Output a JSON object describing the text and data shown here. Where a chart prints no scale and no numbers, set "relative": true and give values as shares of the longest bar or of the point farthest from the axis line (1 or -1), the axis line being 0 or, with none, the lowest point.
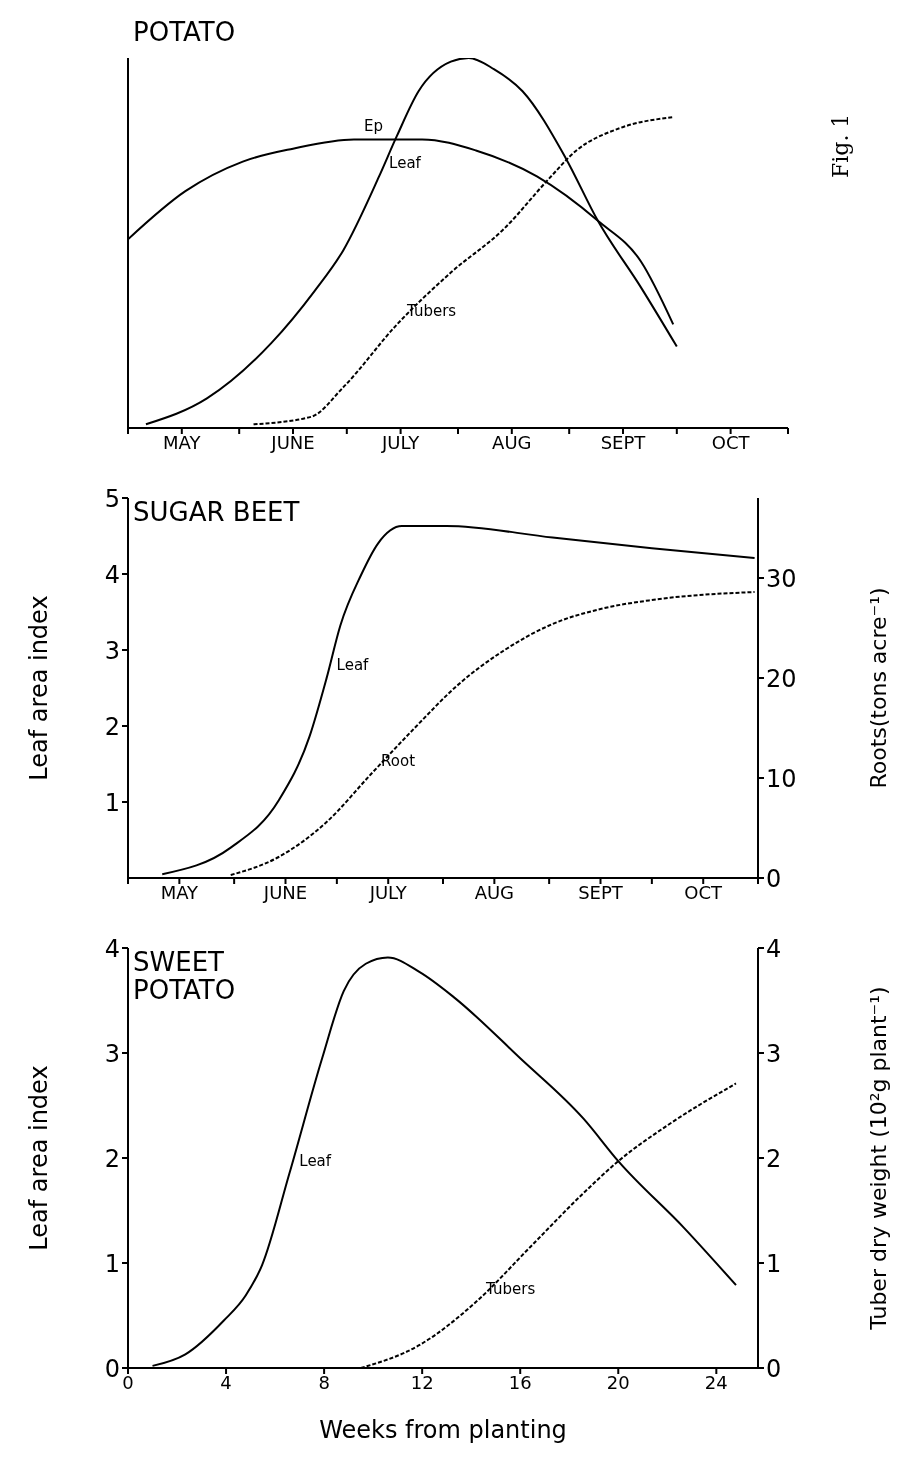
{
  "chart_data": [
    {
      "type": "line",
      "title": "POTATO",
      "relative": true,
      "annotations": [
        "Fig. 1"
      ],
      "xlim": [
        "--05-01",
        "--11-01"
      ],
      "xticks": [
        {
          "value": "--05-01",
          "label": null
        },
        {
          "value": "--05-16",
          "label": "MAY"
        },
        {
          "value": "--06-01",
          "label": null
        },
        {
          "value": "--06-16",
          "label": "JUNE"
        },
        {
          "value": "--07-01",
          "label": null
        },
        {
          "value": "--07-16",
          "label": "JULY"
        },
        {
          "value": "--08-01",
          "label": null
        },
        {
          "value": "--08-16",
          "label": "AUG"
        },
        {
          "value": "--09-01",
          "label": null
        },
        {
          "value": "--09-16",
          "label": "SEPT"
        },
        {
          "value": "--10-01",
          "label": null
        },
        {
          "value": "--10-16",
          "label": "OCT"
        },
        {
          "value": "--11-01",
          "label": null
        }
      ],
      "grid": false,
      "legend": false,
      "series": [
        {
          "name": "Ep",
          "color": "#000000",
          "line_style": "solid",
          "x": [
            "--05-01",
            "--05-17",
            "--06-02",
            "--06-16",
            "--07-03",
            "--07-14",
            "--07-22",
            "--08-06",
            "--08-23",
            "--09-09",
            "--09-21",
            "--09-30"
          ],
          "values": [
            0.51,
            0.64,
            0.72,
            0.755,
            0.78,
            0.78,
            0.78,
            0.75,
            0.68,
            0.56,
            0.45,
            0.28
          ]
        },
        {
          "name": "Leaf",
          "color": "#000000",
          "line_style": "solid",
          "x": [
            "--05-06",
            "--05-23",
            "--06-10",
            "--06-22",
            "--06-30",
            "--07-10",
            "--07-15",
            "--07-21",
            "--07-30",
            "--08-04",
            "--08-11",
            "--08-19",
            "--08-31",
            "--09-09",
            "--09-21",
            "--10-01"
          ],
          "values": [
            0.01,
            0.08,
            0.23,
            0.37,
            0.48,
            0.68,
            0.79,
            0.91,
            0.99,
            1.0,
            0.97,
            0.91,
            0.73,
            0.56,
            0.38,
            0.22
          ]
        },
        {
          "name": "Tubers",
          "color": "#000000",
          "line_style": "dashed",
          "x": [
            "--06-05",
            "--06-21",
            "--06-30",
            "--07-15",
            "--07-30",
            "--08-14",
            "--08-26",
            "--09-03",
            "--09-15",
            "--09-30"
          ],
          "values": [
            0.01,
            0.03,
            0.11,
            0.28,
            0.42,
            0.54,
            0.67,
            0.75,
            0.81,
            0.84
          ]
        }
      ]
    },
    {
      "type": "line",
      "title": "SUGAR BEET",
      "ylabel": "Leaf area index",
      "y2label": "Roots(tons acre⁻¹)",
      "xlim": [
        "--05-01",
        "--11-01"
      ],
      "xticks": [
        {
          "value": "--05-01",
          "label": null
        },
        {
          "value": "--05-16",
          "label": "MAY"
        },
        {
          "value": "--06-01",
          "label": null
        },
        {
          "value": "--06-16",
          "label": "JUNE"
        },
        {
          "value": "--07-01",
          "label": null
        },
        {
          "value": "--07-16",
          "label": "JULY"
        },
        {
          "value": "--08-01",
          "label": null
        },
        {
          "value": "--08-16",
          "label": "AUG"
        },
        {
          "value": "--09-01",
          "label": null
        },
        {
          "value": "--09-16",
          "label": "SEPT"
        },
        {
          "value": "--10-01",
          "label": null
        },
        {
          "value": "--10-16",
          "label": "OCT"
        },
        {
          "value": "--11-01",
          "label": null
        }
      ],
      "ylim": [
        0,
        5
      ],
      "yticks": [
        1,
        2,
        3,
        4,
        5
      ],
      "y2lim": [
        0,
        38
      ],
      "y2ticks": [
        0,
        10,
        20,
        30
      ],
      "grid": false,
      "legend": false,
      "series": [
        {
          "name": "Leaf",
          "color": "#000000",
          "line_style": "solid",
          "x": [
            "--05-11",
            "--05-31",
            "--06-14",
            "--06-23",
            "--06-28",
            "--07-02",
            "--07-08",
            "--07-13",
            "--07-20",
            "--08-02",
            "--09-02",
            "--10-01",
            "--10-31"
          ],
          "values": [
            0.05,
            0.4,
            1.02,
            1.86,
            2.63,
            3.32,
            3.98,
            4.4,
            4.63,
            4.63,
            4.48,
            4.34,
            4.21
          ]
        },
        {
          "name": "Root",
          "color": "#000000",
          "line_style": "dashed",
          "axis": "y2",
          "x": [
            "--05-31",
            "--06-14",
            "--06-28",
            "--07-11",
            "--07-24",
            "--08-05",
            "--08-19",
            "--09-02",
            "--09-16",
            "--10-01",
            "--10-31"
          ],
          "values": [
            0.3,
            2.1,
            5.6,
            10.4,
            15.1,
            19.2,
            22.8,
            25.4,
            26.9,
            27.8,
            28.6
          ]
        }
      ]
    },
    {
      "type": "line",
      "title": "SWEET POTATO",
      "xlabel": "Weeks from planting",
      "ylabel": "Leaf area index",
      "y2label": "Tuber dry weight (10²g plant⁻¹)",
      "xlim": [
        0,
        25.7
      ],
      "xticks": [
        0,
        4,
        8,
        12,
        16,
        20,
        24
      ],
      "ylim": [
        0,
        4
      ],
      "yticks": [
        0,
        1,
        2,
        3,
        4
      ],
      "y2lim": [
        0,
        4
      ],
      "y2ticks": [
        0,
        1,
        2,
        3,
        4
      ],
      "grid": false,
      "legend": false,
      "series": [
        {
          "name": "Leaf",
          "color": "#000000",
          "line_style": "solid",
          "x": [
            1.0,
            2.34,
            3.9,
            4.8,
            5.47,
            6.58,
            7.92,
            8.8,
            9.7,
            10.6,
            11.9,
            13.3,
            16.0,
            18.6,
            20.0,
            22.7,
            24.8
          ],
          "values": [
            0.02,
            0.13,
            0.45,
            0.69,
            0.98,
            1.85,
            2.95,
            3.59,
            3.85,
            3.91,
            3.77,
            3.53,
            2.95,
            2.37,
            1.97,
            1.33,
            0.79
          ]
        },
        {
          "name": "Tubers",
          "color": "#000000",
          "line_style": "dashed",
          "axis": "y2",
          "x": [
            9.5,
            11.9,
            14.2,
            16.4,
            18.6,
            20.0,
            22.0,
            24.8
          ],
          "values": [
            0,
            0.22,
            0.63,
            1.15,
            1.67,
            1.97,
            2.31,
            2.71
          ]
        }
      ]
    }
  ]
}
